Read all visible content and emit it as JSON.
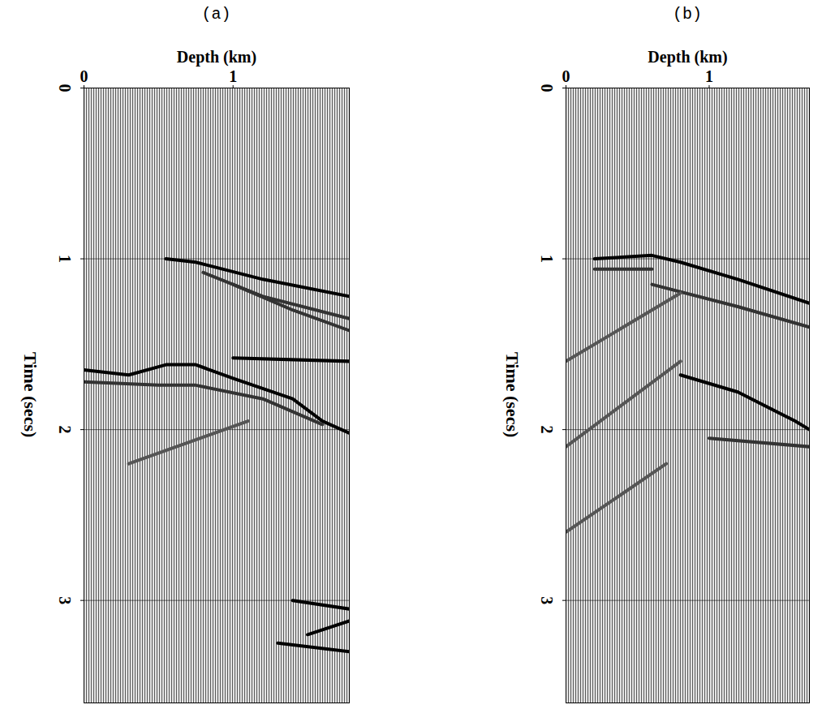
{
  "chart_data": [
    {
      "type": "line",
      "title": "(a)",
      "xlabel": "Depth (km)",
      "ylabel": "Time (secs)",
      "xlim": [
        0,
        1.78
      ],
      "xticks": [
        0,
        1
      ],
      "ylim": [
        0,
        3.6
      ],
      "yticks": [
        0,
        1,
        2,
        3
      ],
      "grid": true,
      "series": [
        {
          "color": "#000000",
          "x": [
            0.55,
            0.75,
            1.2,
            1.78
          ],
          "y": [
            1.0,
            1.02,
            1.12,
            1.22
          ]
        },
        {
          "color": "#333333",
          "x": [
            0.8,
            1.2,
            1.78
          ],
          "y": [
            1.08,
            1.22,
            1.35
          ]
        },
        {
          "color": "#333333",
          "x": [
            1.0,
            1.4,
            1.78
          ],
          "y": [
            1.15,
            1.3,
            1.42
          ]
        },
        {
          "color": "#000000",
          "x": [
            1.0,
            1.78
          ],
          "y": [
            1.58,
            1.6
          ]
        },
        {
          "color": "#000000",
          "x": [
            0,
            0.3,
            0.55,
            0.75,
            1.0,
            1.4,
            1.6,
            1.78
          ],
          "y": [
            1.65,
            1.68,
            1.62,
            1.62,
            1.7,
            1.82,
            1.95,
            2.02
          ]
        },
        {
          "color": "#333333",
          "x": [
            0,
            0.5,
            0.75,
            1.2,
            1.6
          ],
          "y": [
            1.72,
            1.74,
            1.74,
            1.82,
            1.97
          ]
        },
        {
          "color": "#555555",
          "x": [
            0.3,
            1.1
          ],
          "y": [
            2.2,
            1.95
          ]
        },
        {
          "color": "#000000",
          "x": [
            1.4,
            1.78
          ],
          "y": [
            3.0,
            3.05
          ]
        },
        {
          "color": "#000000",
          "x": [
            1.5,
            1.78
          ],
          "y": [
            3.2,
            3.12
          ]
        },
        {
          "color": "#000000",
          "x": [
            1.3,
            1.78
          ],
          "y": [
            3.25,
            3.3
          ]
        }
      ]
    },
    {
      "type": "line",
      "title": "(b)",
      "xlabel": "Depth (km)",
      "ylabel": "Time (secs)",
      "xlim": [
        0,
        1.7
      ],
      "xticks": [
        0,
        1
      ],
      "ylim": [
        0,
        3.6
      ],
      "yticks": [
        0,
        1,
        2,
        3
      ],
      "grid": true,
      "series": [
        {
          "color": "#000000",
          "x": [
            0.2,
            0.6,
            0.8,
            1.2,
            1.7
          ],
          "y": [
            1.0,
            0.98,
            1.02,
            1.12,
            1.26
          ]
        },
        {
          "color": "#333333",
          "x": [
            0.2,
            0.6
          ],
          "y": [
            1.06,
            1.06
          ]
        },
        {
          "color": "#333333",
          "x": [
            0.6,
            1.2,
            1.7
          ],
          "y": [
            1.15,
            1.28,
            1.4
          ]
        },
        {
          "color": "#555555",
          "x": [
            0,
            0.8
          ],
          "y": [
            1.6,
            1.2
          ]
        },
        {
          "color": "#555555",
          "x": [
            0,
            0.8
          ],
          "y": [
            2.1,
            1.6
          ]
        },
        {
          "color": "#555555",
          "x": [
            0,
            0.7
          ],
          "y": [
            2.6,
            2.2
          ]
        },
        {
          "color": "#000000",
          "x": [
            0.8,
            1.2,
            1.6,
            1.7
          ],
          "y": [
            1.68,
            1.78,
            1.95,
            2.0
          ]
        },
        {
          "color": "#333333",
          "x": [
            1.0,
            1.7
          ],
          "y": [
            2.05,
            2.1
          ]
        }
      ]
    }
  ]
}
